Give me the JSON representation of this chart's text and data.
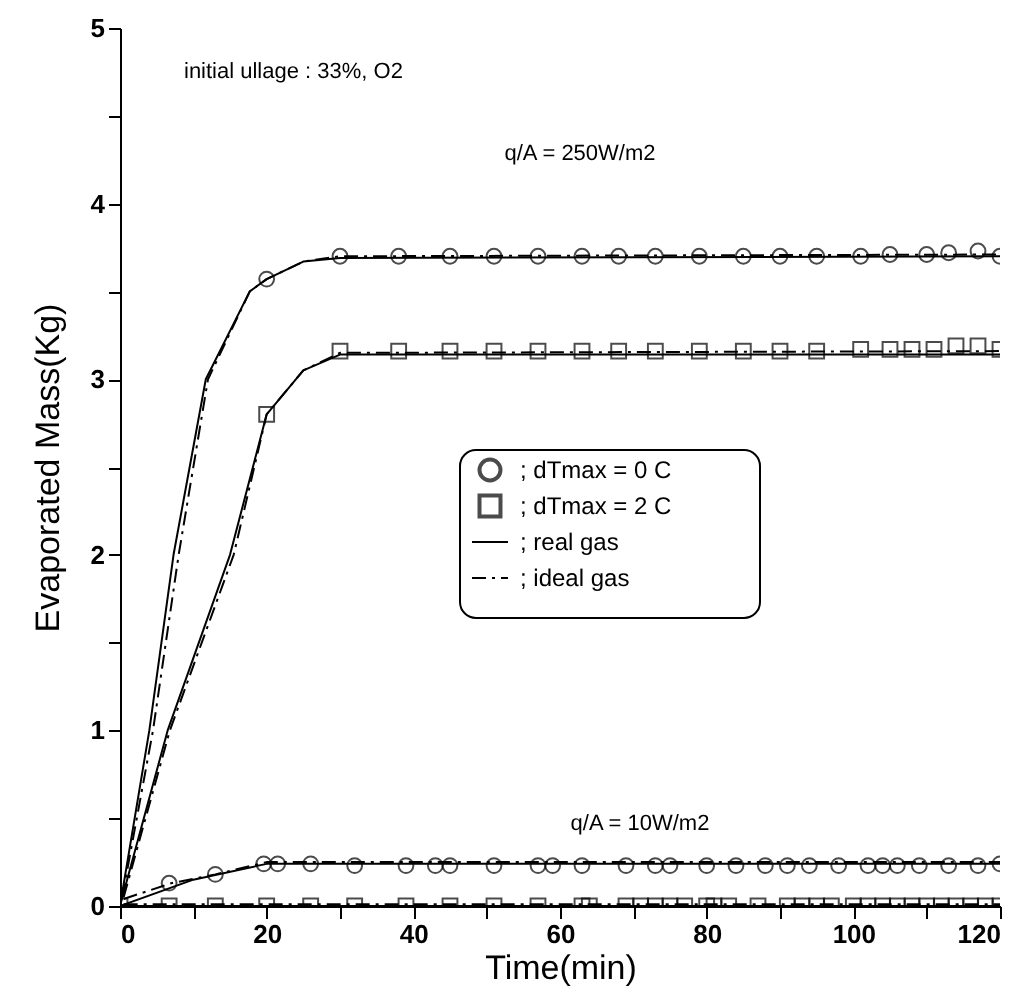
{
  "chart_data": {
    "type": "line",
    "xlabel": "Time(min)",
    "ylabel": "Evaporated Mass(Kg)",
    "xlim": [
      0,
      120
    ],
    "ylim": [
      0,
      5
    ],
    "xticks": [
      0,
      {
        "value": 10,
        "label": null
      },
      20,
      {
        "value": 30,
        "label": null
      },
      40,
      {
        "value": 50,
        "label": null
      },
      60,
      {
        "value": 70,
        "label": null
      },
      80,
      {
        "value": 90,
        "label": null
      },
      100,
      {
        "value": 110,
        "label": null
      },
      120
    ],
    "yticks": [
      0,
      {
        "value": 0.5,
        "label": null
      },
      1,
      {
        "value": 1.5,
        "label": null
      },
      2,
      {
        "value": 2.5,
        "label": null
      },
      3,
      {
        "value": 3.5,
        "label": null
      },
      4,
      {
        "value": 4.5,
        "label": null
      },
      5
    ],
    "grid": false,
    "legend": "right",
    "annotations": [
      "initial ullage : 33%, O2",
      "q/A = 250W/m2",
      "q/A = 10W/m2"
    ],
    "series": [
      {
        "name": "; dTmax = 0 C",
        "type": "scatter",
        "marker": "circle",
        "color": "#000000",
        "x": [
          20,
          30,
          38,
          45,
          51,
          57,
          63,
          68,
          73,
          79,
          85,
          90,
          95,
          101,
          105,
          110,
          113,
          117,
          120
        ],
        "values": [
          3.57,
          3.7,
          3.7,
          3.7,
          3.7,
          3.7,
          3.7,
          3.7,
          3.7,
          3.7,
          3.7,
          3.7,
          3.7,
          3.7,
          3.71,
          3.71,
          3.72,
          3.73,
          3.7
        ]
      },
      {
        "name": "; dTmax = 2 C",
        "type": "scatter",
        "marker": "square",
        "color": "#000000",
        "x": [
          20,
          30,
          38,
          45,
          51,
          57,
          63,
          68,
          73,
          79,
          85,
          90,
          95,
          101,
          105,
          108,
          111,
          114,
          117,
          120
        ],
        "values": [
          2.8,
          3.16,
          3.16,
          3.16,
          3.16,
          3.16,
          3.16,
          3.16,
          3.16,
          3.16,
          3.16,
          3.16,
          3.16,
          3.17,
          3.17,
          3.17,
          3.17,
          3.19,
          3.19,
          3.17
        ]
      },
      {
        "name": "; real gas",
        "line_style": "solid",
        "color": "#000000",
        "x": [
          0,
          4,
          7.3,
          11.7,
          17.7,
          20,
          25,
          30,
          120
        ],
        "values": [
          0,
          1,
          2,
          3,
          3.5,
          3.57,
          3.67,
          3.69,
          3.7
        ]
      },
      {
        "name": "; ideal gas",
        "line_style": "dashed",
        "color": "#000000",
        "x": [
          0.5,
          6.8,
          15.5,
          20,
          25,
          30,
          120
        ],
        "values": [
          0.05,
          1,
          2,
          2.8,
          3.05,
          3.15,
          3.16
        ]
      },
      {
        "line_style": "dashed",
        "color": "#000000",
        "x": [
          0.3,
          4.5,
          8,
          12,
          17.7,
          20,
          25,
          30,
          120
        ],
        "values": [
          0.05,
          1,
          2,
          3,
          3.5,
          3.57,
          3.67,
          3.7,
          3.71
        ]
      },
      {
        "line_style": "solid",
        "color": "#000000",
        "x": [
          0,
          6.5,
          15,
          20,
          25,
          30,
          120
        ],
        "values": [
          0,
          1,
          2,
          2.8,
          3.05,
          3.14,
          3.14
        ]
      },
      {
        "type": "scatter",
        "marker": "circle",
        "color": "#000000",
        "x": [
          6.7,
          13,
          19.6,
          21.5,
          26,
          32,
          39,
          43,
          45,
          51,
          57,
          59,
          63,
          69,
          73,
          75,
          80,
          84,
          88,
          91,
          94,
          98,
          102,
          104,
          106,
          109,
          113,
          117,
          120
        ],
        "values": [
          0.13,
          0.18,
          0.24,
          0.24,
          0.24,
          0.23,
          0.23,
          0.23,
          0.23,
          0.23,
          0.23,
          0.23,
          0.23,
          0.23,
          0.23,
          0.23,
          0.23,
          0.23,
          0.23,
          0.23,
          0.23,
          0.23,
          0.23,
          0.23,
          0.23,
          0.23,
          0.23,
          0.23,
          0.24
        ]
      },
      {
        "type": "scatter",
        "marker": "square",
        "color": "#000000",
        "x": [
          0,
          6.7,
          13,
          20,
          26,
          32,
          39,
          45,
          51,
          57,
          63,
          64,
          69,
          71,
          73,
          75,
          77,
          80,
          81,
          83,
          87,
          91,
          93,
          95,
          97,
          100,
          102,
          104,
          106,
          108,
          110,
          112,
          114,
          116,
          118,
          120
        ],
        "values": [
          0,
          0,
          0,
          0,
          0,
          0,
          0,
          0,
          0,
          0,
          0,
          0,
          0,
          0,
          0,
          0,
          0,
          0,
          0,
          0,
          0,
          0,
          0,
          0,
          0,
          0,
          0,
          0,
          0,
          0,
          0,
          0,
          0,
          0,
          0,
          0
        ]
      },
      {
        "line_style": "solid",
        "color": "#000000",
        "x": [
          0,
          10,
          20,
          120
        ],
        "values": [
          0,
          0.15,
          0.24,
          0.24
        ]
      },
      {
        "line_style": "dashed",
        "color": "#000000",
        "x": [
          0.5,
          7,
          13,
          20,
          120
        ],
        "values": [
          0.04,
          0.13,
          0.18,
          0.25,
          0.25
        ]
      },
      {
        "line_style": "solid",
        "color": "#000000",
        "x": [
          0,
          120
        ],
        "values": [
          0,
          0
        ]
      },
      {
        "line_style": "dashed",
        "color": "#000000",
        "x": [
          0.5,
          120
        ],
        "values": [
          0.01,
          0.01
        ]
      }
    ]
  }
}
